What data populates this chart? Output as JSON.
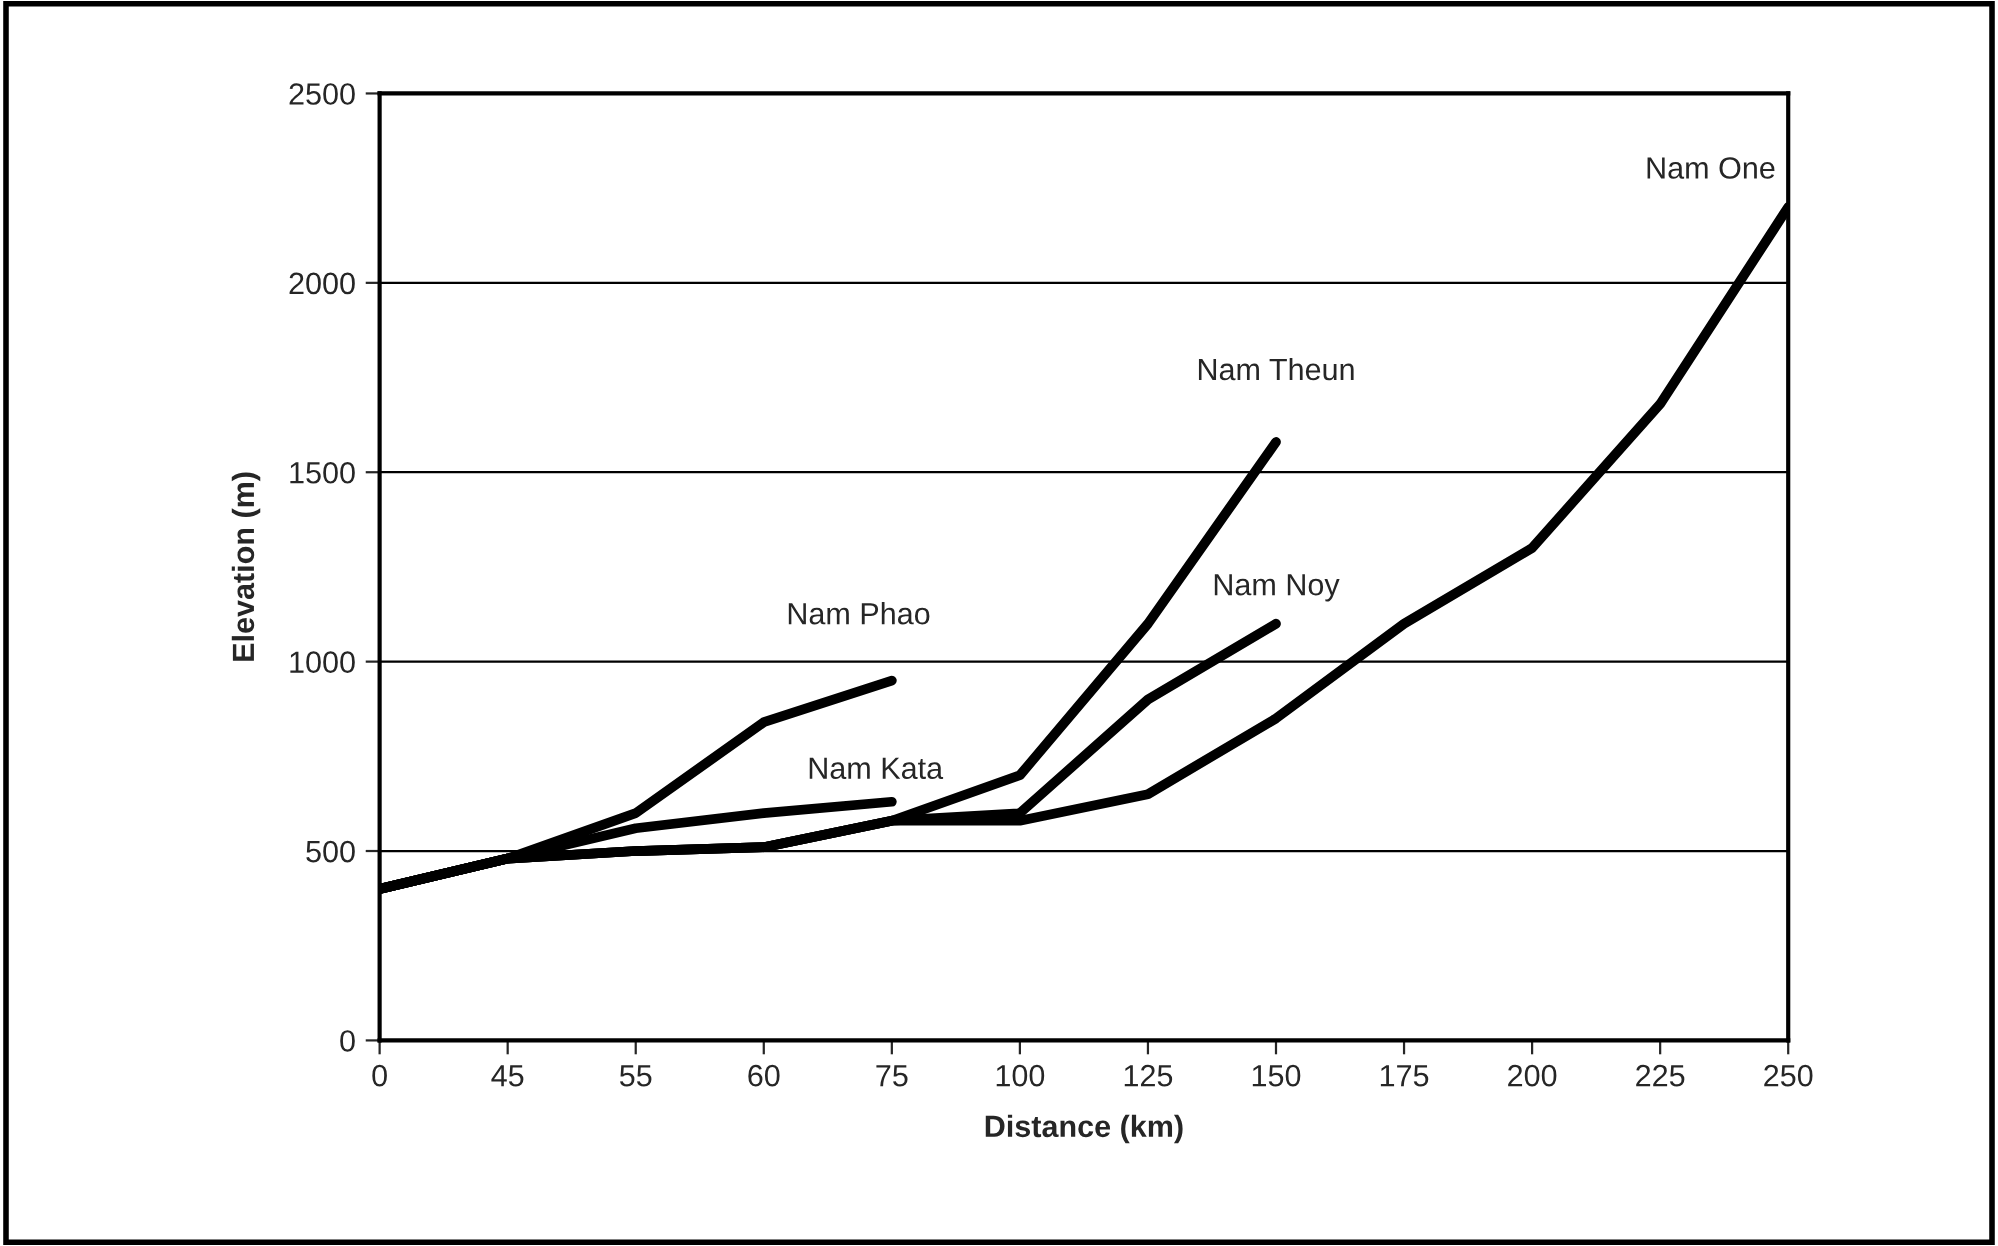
{
  "chart_data": {
    "type": "line",
    "xlabel": "Distance (km)",
    "ylabel": "Elevation (m)",
    "categories": [
      "0",
      "45",
      "55",
      "60",
      "75",
      "100",
      "125",
      "150",
      "175",
      "200",
      "225",
      "250"
    ],
    "series": [
      {
        "name": "Nam Phao",
        "color": "#000000",
        "values": [
          400,
          480,
          600,
          840,
          950,
          null,
          null,
          null,
          null,
          null,
          null,
          null
        ]
      },
      {
        "name": "Nam Kata",
        "color": "#000000",
        "values": [
          400,
          480,
          560,
          600,
          630,
          null,
          null,
          null,
          null,
          null,
          null,
          null
        ]
      },
      {
        "name": "Nam Theun",
        "color": "#000000",
        "values": [
          400,
          480,
          500,
          510,
          580,
          700,
          1100,
          1580,
          null,
          null,
          null,
          null
        ]
      },
      {
        "name": "Nam Noy",
        "color": "#000000",
        "values": [
          400,
          480,
          500,
          510,
          580,
          600,
          900,
          1100,
          null,
          null,
          null,
          null
        ]
      },
      {
        "name": "Nam One",
        "color": "#000000",
        "values": [
          400,
          480,
          500,
          510,
          580,
          580,
          650,
          850,
          1100,
          1300,
          1680,
          2200
        ]
      }
    ],
    "ylim": [
      0,
      2500
    ],
    "yticks": [
      0,
      500,
      1000,
      1500,
      2000,
      2500
    ],
    "grid": "y",
    "legend": false,
    "marker": "none",
    "line_style": "solid"
  }
}
